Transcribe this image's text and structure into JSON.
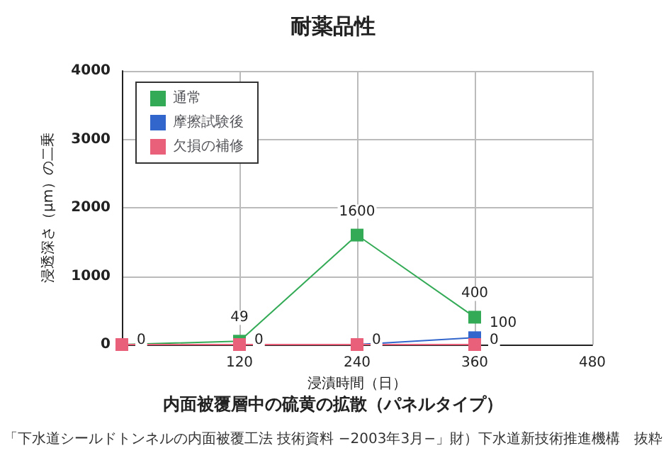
{
  "chart_data": {
    "type": "line",
    "title": "耐薬品性",
    "subtitle": "内面被覆層中の硫黄の拡散（パネルタイプ）",
    "xlabel": "浸漬時間（日）",
    "ylabel": "浸透深さ（μm）の二乗",
    "x": [
      0,
      120,
      240,
      360
    ],
    "series": [
      {
        "name": "通常",
        "color": "#33aa55",
        "values": [
          0,
          49,
          1600,
          400
        ],
        "value_labels": [
          "0",
          "49",
          "1600",
          "400"
        ]
      },
      {
        "name": "摩擦試験後",
        "color": "#3366cc",
        "values": [
          0,
          0,
          0,
          100
        ],
        "value_labels": [
          null,
          "0",
          "0",
          "100"
        ]
      },
      {
        "name": "欠損の補修",
        "color": "#e8607a",
        "values": [
          0,
          0,
          0,
          0
        ],
        "value_labels": [
          null,
          null,
          null,
          "0"
        ]
      }
    ],
    "xlim": [
      0,
      480
    ],
    "xticks": [
      120,
      240,
      360,
      480
    ],
    "ylim": [
      0,
      4000
    ],
    "yticks": [
      0,
      1000,
      2000,
      3000,
      4000
    ],
    "grid": true,
    "legend": "top left",
    "marker": "square",
    "line_style": "solid",
    "annotations": [
      "「下水道シールドトンネルの内面被覆工法 技術資料 −2003年3月−」財）下水道新技術推進機構　抜粋"
    ]
  }
}
